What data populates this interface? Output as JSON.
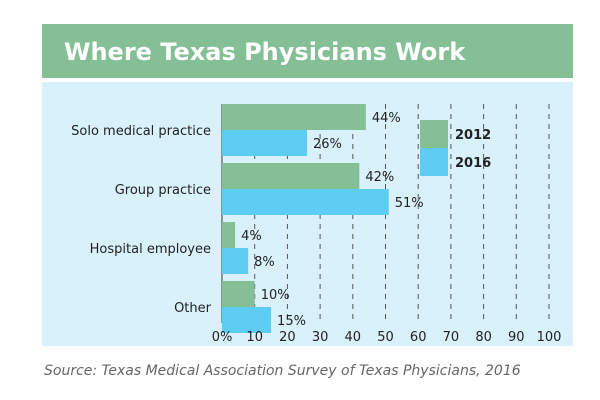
{
  "chart_data": {
    "type": "bar",
    "orientation": "horizontal",
    "title": "Where Texas Physicians Work",
    "categories": [
      "Solo medical practice",
      "Group practice",
      "Hospital employee",
      "Other"
    ],
    "series": [
      {
        "name": "2012",
        "values": [
          44,
          42,
          4,
          10
        ],
        "labels": [
          "44%",
          "42%",
          "4%",
          "10%"
        ],
        "color": "#84bf96"
      },
      {
        "name": "2016",
        "values": [
          26,
          51,
          8,
          15
        ],
        "labels": [
          "26%",
          "51%",
          "8%",
          "15%"
        ],
        "color": "#5ecdf3"
      }
    ],
    "xlim": [
      0,
      100
    ],
    "x_ticks": [
      0,
      10,
      20,
      30,
      40,
      50,
      60,
      70,
      80,
      90,
      100
    ],
    "x_tick_labels": [
      "0%",
      "10",
      "20",
      "30",
      "40",
      "50",
      "60",
      "70",
      "80",
      "90",
      "100"
    ],
    "grid": "vertical dashed",
    "legend_position": "top-right",
    "source": "Source: Texas Medical Association Survey of Texas Physicians, 2016"
  },
  "colors": {
    "title_band": "#84bf96",
    "plot_background": "#d9f1fb",
    "grid": "#555555"
  }
}
